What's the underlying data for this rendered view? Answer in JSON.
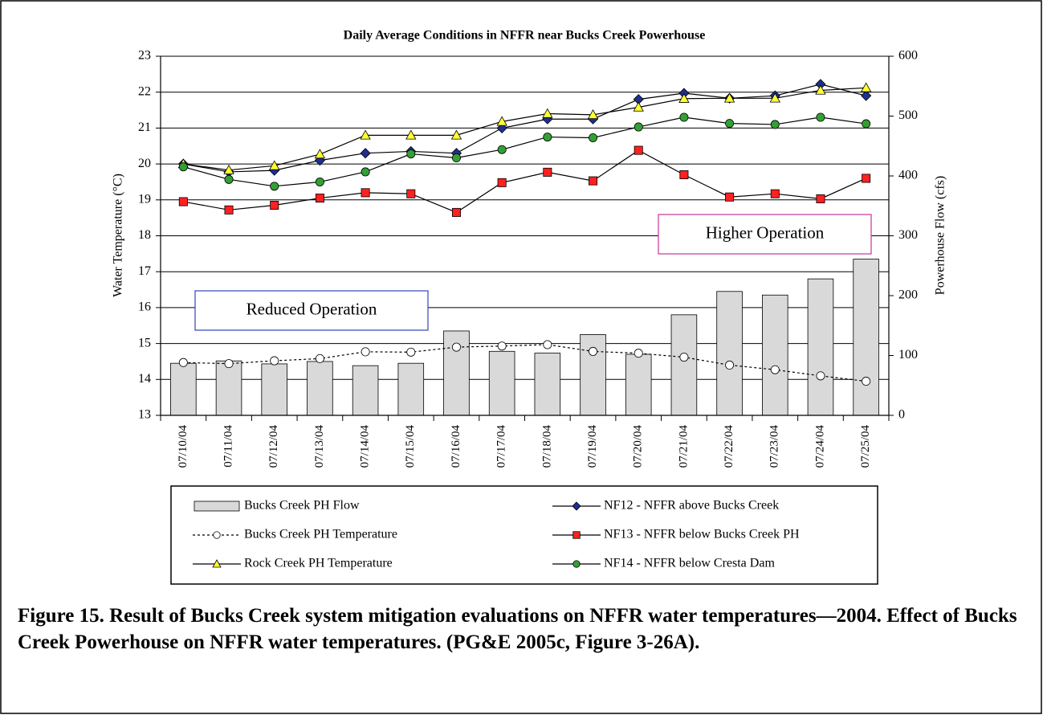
{
  "chart_data": {
    "type": "combo",
    "title": "Daily Average Conditions in NFFR near  Bucks Creek Powerhouse",
    "y_label": "Water Temperature (°C)",
    "y2_label": "Powerhouse Flow (cfs)",
    "categories": [
      "07/10/04",
      "07/11/04",
      "07/12/04",
      "07/13/04",
      "07/14/04",
      "07/15/04",
      "07/16/04",
      "07/17/04",
      "07/18/04",
      "07/19/04",
      "07/20/04",
      "07/21/04",
      "07/22/04",
      "07/23/04",
      "07/24/04",
      "07/25/04"
    ],
    "ylim": [
      13,
      23
    ],
    "yticks": [
      13,
      14,
      15,
      16,
      17,
      18,
      19,
      20,
      21,
      22,
      23
    ],
    "y2lim": [
      0,
      600
    ],
    "y2ticks": [
      0,
      100,
      200,
      300,
      400,
      500,
      600
    ],
    "grid": true,
    "series": [
      {
        "name": "Bucks Creek PH Flow",
        "type": "bar",
        "axis": "y2",
        "color": "#d9d9d9",
        "values": [
          87,
          91,
          86,
          90,
          83,
          87,
          141,
          107,
          104,
          135,
          102,
          168,
          207,
          201,
          228,
          261
        ]
      },
      {
        "name": "NF12 - NFFR above Bucks Creek",
        "type": "line",
        "marker": "diamond",
        "color": "#1f2f8f",
        "values": [
          20.0,
          19.78,
          19.82,
          20.1,
          20.3,
          20.35,
          20.3,
          21.0,
          21.25,
          21.25,
          21.8,
          21.97,
          21.83,
          21.9,
          22.22,
          21.9
        ]
      },
      {
        "name": "Bucks Creek PH Temperature",
        "type": "line",
        "marker": "circle",
        "line_style": "dotted",
        "color": "#ffffff",
        "values": [
          14.47,
          14.44,
          14.52,
          14.58,
          14.77,
          14.76,
          14.9,
          14.93,
          14.97,
          14.78,
          14.73,
          14.62,
          14.4,
          14.27,
          14.1,
          13.95
        ]
      },
      {
        "name": "NF13 - NFFR below Bucks Creek PH",
        "type": "line",
        "marker": "square",
        "color": "#ff2020",
        "values": [
          18.95,
          18.72,
          18.85,
          19.05,
          19.2,
          19.17,
          18.65,
          19.48,
          19.77,
          19.53,
          20.38,
          19.7,
          19.08,
          19.17,
          19.03,
          19.6
        ]
      },
      {
        "name": "Rock Creek PH Temperature",
        "type": "line",
        "marker": "triangle",
        "color": "#ffff33",
        "values": [
          20.0,
          19.83,
          19.95,
          20.27,
          20.8,
          20.8,
          20.8,
          21.18,
          21.4,
          21.37,
          21.58,
          21.82,
          21.83,
          21.83,
          22.05,
          22.12
        ]
      },
      {
        "name": "NF14 - NFFR below Cresta Dam",
        "type": "line",
        "marker": "circle",
        "color": "#33a033",
        "values": [
          19.92,
          19.57,
          19.38,
          19.5,
          19.78,
          20.28,
          20.17,
          20.4,
          20.75,
          20.73,
          21.03,
          21.3,
          21.13,
          21.1,
          21.3,
          21.12
        ]
      }
    ],
    "annotations": [
      "Higher Operation",
      "Reduced Operation"
    ],
    "caption": "Figure 15.  Result of Bucks Creek system mitigation evaluations on NFFR water temperatures—2004. Effect of Bucks Creek Powerhouse on NFFR water temperatures. (PG&E 2005c, Figure 3-26A)."
  }
}
